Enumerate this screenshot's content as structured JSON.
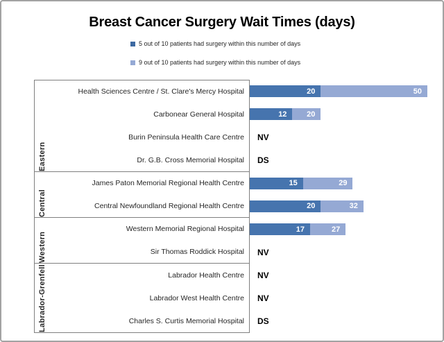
{
  "title": "Breast Cancer Surgery Wait Times (days)",
  "legend": {
    "items": [
      {
        "label": "5 out of 10 patients had surgery within this number of days",
        "color": "#3e6aa2",
        "series_key": "p50"
      },
      {
        "label": "9 out of 10 patients had surgery within this number of days",
        "color": "#95a9d4",
        "series_key": "p90"
      }
    ]
  },
  "chart_data": {
    "type": "bar",
    "orientation": "horizontal",
    "title": "Breast Cancer Surgery Wait Times (days)",
    "unit": "days",
    "xlim": [
      0,
      52
    ],
    "grid": false,
    "axis_ticks_visible": false,
    "legend_position": "top-center",
    "series": [
      {
        "name": "5 out of 10 patients had surgery within this number of days",
        "key": "p50",
        "color": "#4674ae"
      },
      {
        "name": "9 out of 10 patients had surgery within this number of days",
        "key": "p90",
        "color": "#95a9d4"
      }
    ],
    "groups": [
      {
        "region": "Eastern",
        "rows": [
          {
            "hospital": "Health Sciences Centre / St. Clare's Mercy Hospital",
            "p50": 20,
            "p90": 50
          },
          {
            "hospital": "Carbonear General Hospital",
            "p50": 12,
            "p90": 20
          },
          {
            "hospital": "Burin Peninsula Health Care Centre",
            "note": "NV"
          },
          {
            "hospital": "Dr. G.B. Cross Memorial Hospital",
            "note": "DS"
          }
        ]
      },
      {
        "region": "Central",
        "rows": [
          {
            "hospital": "James Paton Memorial Regional Health Centre",
            "p50": 15,
            "p90": 29
          },
          {
            "hospital": "Central Newfoundland Regional Health Centre",
            "p50": 20,
            "p90": 32
          }
        ]
      },
      {
        "region": "Western",
        "rows": [
          {
            "hospital": "Western Memorial Regional Hospital",
            "p50": 17,
            "p90": 27
          },
          {
            "hospital": "Sir Thomas Roddick Hospital",
            "note": "NV"
          }
        ]
      },
      {
        "region": "Labrador-Grenfell",
        "rows": [
          {
            "hospital": "Labrador Health Centre",
            "note": "NV"
          },
          {
            "hospital": "Labrador West Health Centre",
            "note": "NV"
          },
          {
            "hospital": "Charles S. Curtis Memorial Hospital",
            "note": "DS"
          }
        ]
      }
    ],
    "colors": {
      "p50": "#4674ae",
      "p90": "#95a9d4"
    }
  }
}
